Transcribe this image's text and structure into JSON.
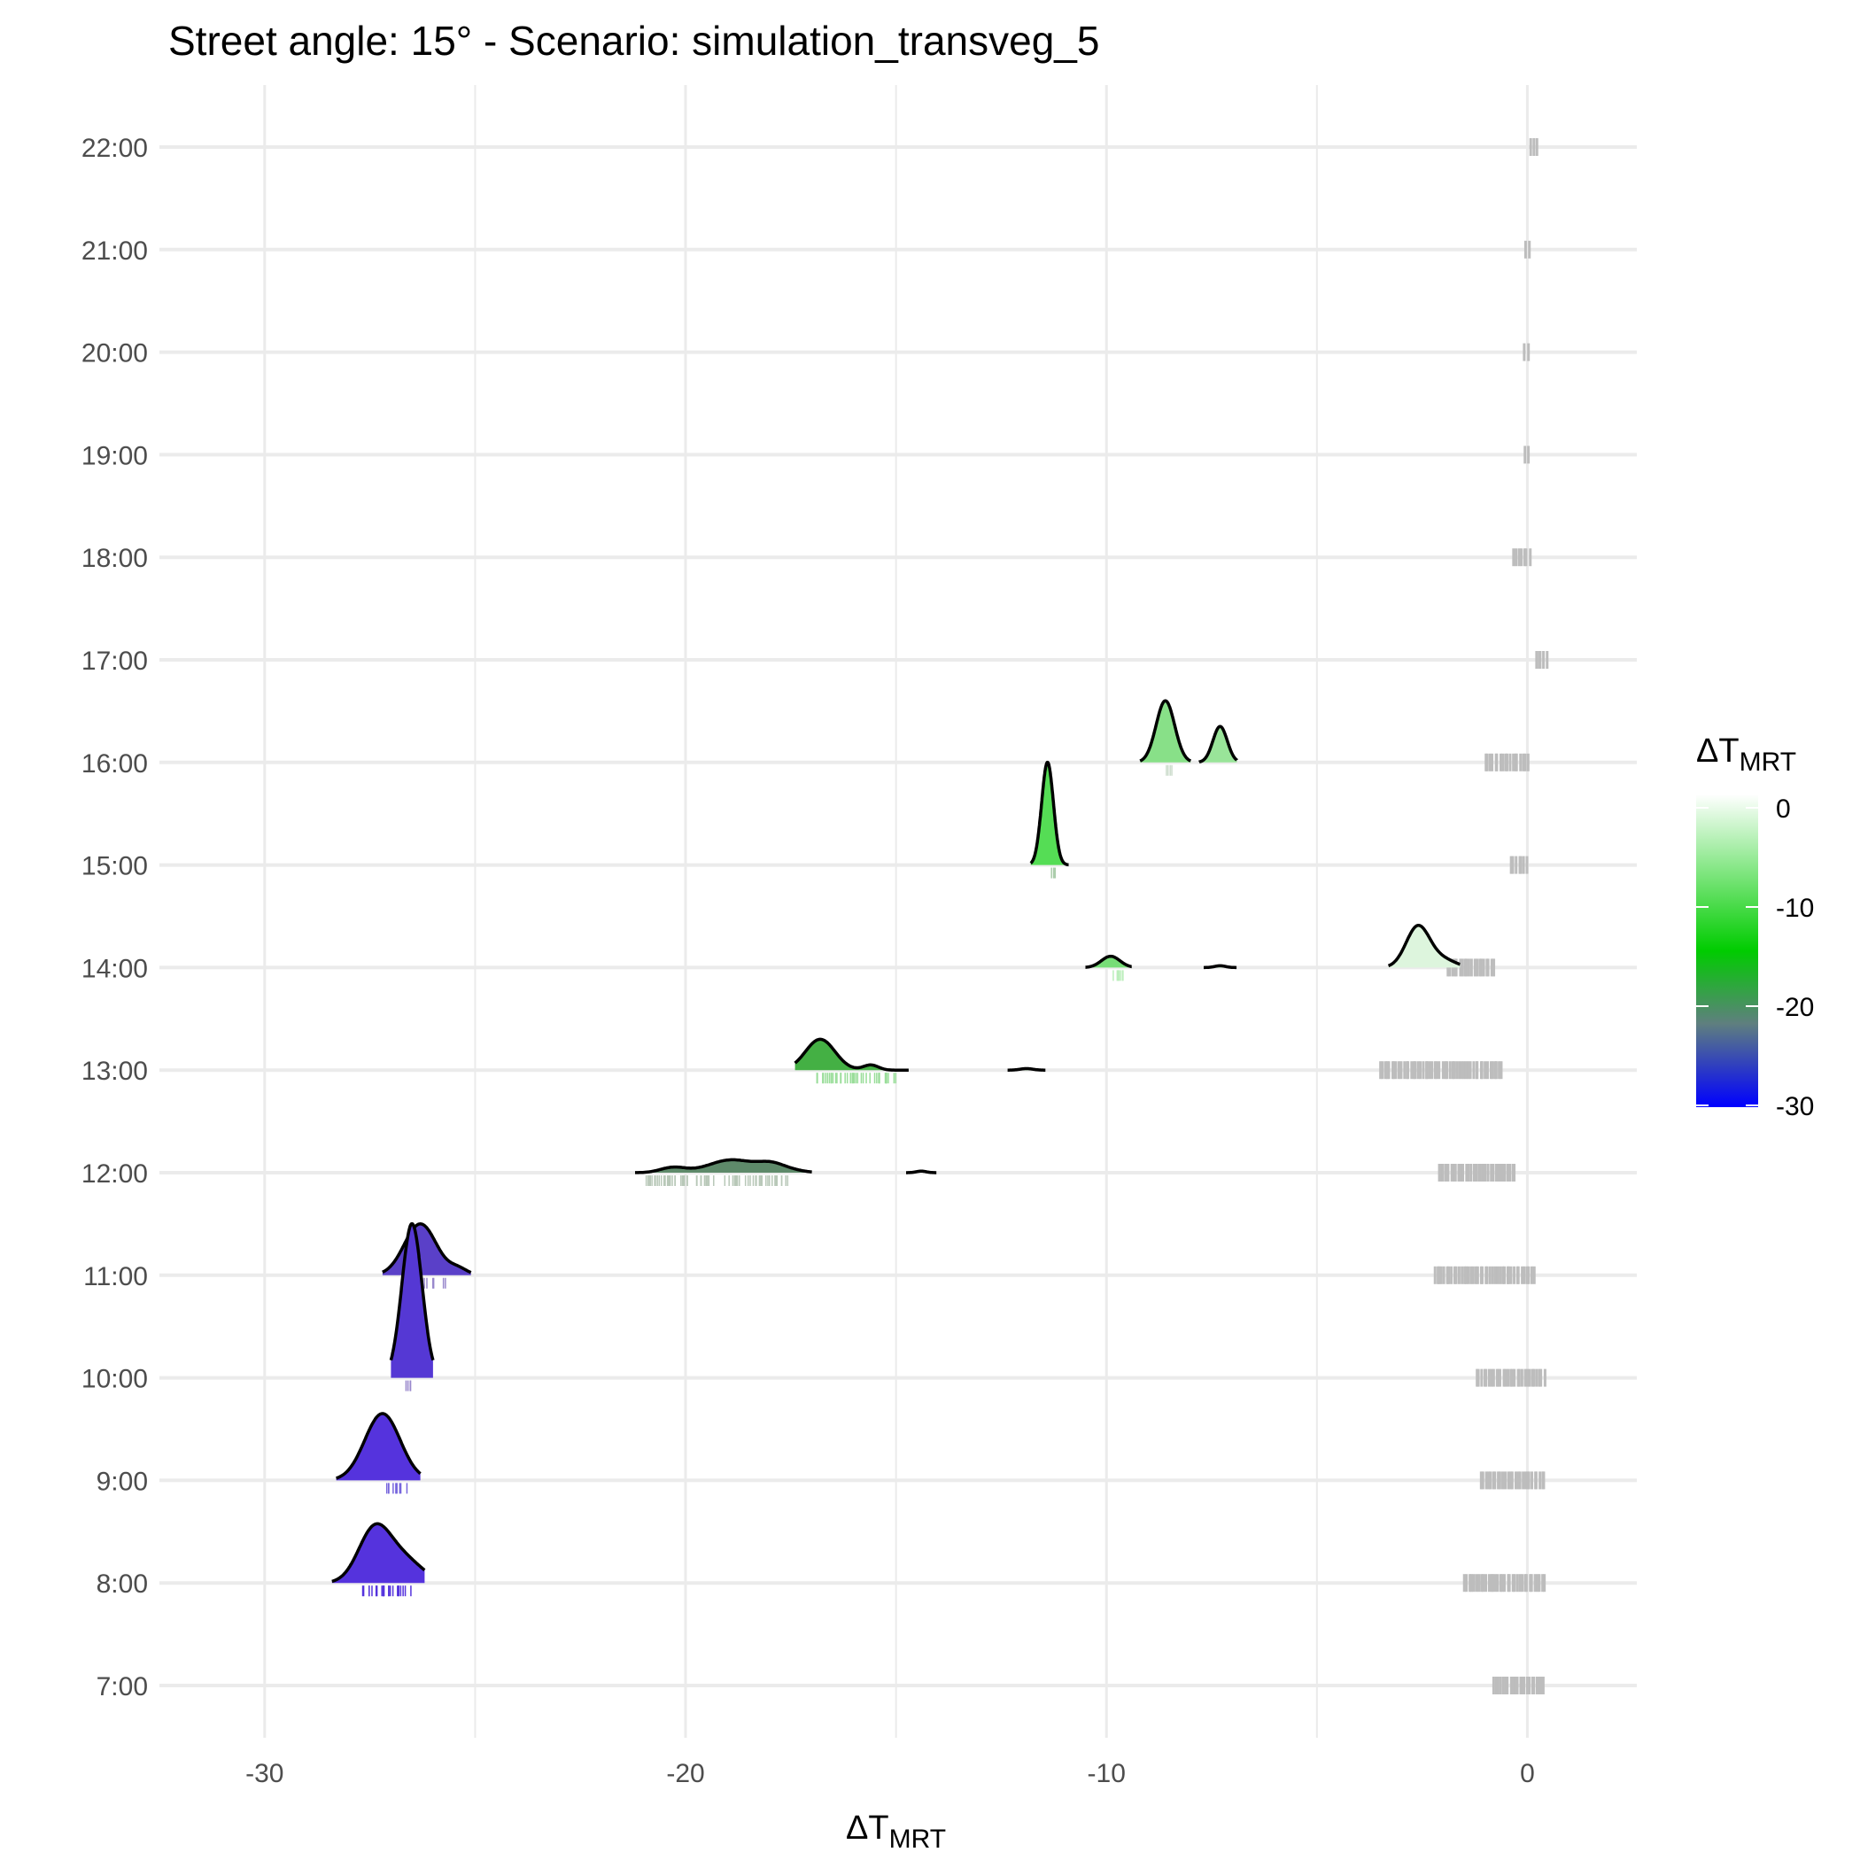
{
  "chart_data": {
    "type": "ridgeline",
    "title": "Street angle: 15° - Scenario: simulation_transveg_5",
    "xlabel": "ΔT",
    "xlabel_sub": "MRT",
    "ylabel": "",
    "xlim": [
      -32.5,
      2.6
    ],
    "x_ticks": [
      -30,
      -20,
      -10,
      0
    ],
    "x_minor_ticks": [
      -25,
      -15,
      -5
    ],
    "categories": [
      "7:00",
      "8:00",
      "9:00",
      "10:00",
      "11:00",
      "12:00",
      "13:00",
      "14:00",
      "15:00",
      "16:00",
      "17:00",
      "18:00",
      "19:00",
      "20:00",
      "21:00",
      "22:00"
    ],
    "grid": true,
    "legend": {
      "title": "ΔT",
      "title_sub": "MRT",
      "position": "right",
      "type": "colorbar",
      "range": [
        -30,
        0
      ],
      "ticks": [
        0,
        -10,
        -20,
        -30
      ],
      "colors": [
        {
          "value": 0,
          "color": "#ffffff"
        },
        {
          "value": -15,
          "color": "#00cc00"
        },
        {
          "value": -22,
          "color": "#5f7f7f"
        },
        {
          "value": -30,
          "color": "#0000ff"
        }
      ]
    },
    "ridges": [
      {
        "category": "8:00",
        "peaks": [
          {
            "center": -27.4,
            "sd": 0.38,
            "height": 1.0,
            "fill": "#5533dd"
          },
          {
            "center": -26.7,
            "sd": 0.45,
            "height": 0.45,
            "fill": "#5533dd"
          }
        ],
        "range": [
          -28.4,
          -26.2
        ]
      },
      {
        "category": "9:00",
        "peaks": [
          {
            "center": -27.2,
            "sd": 0.42,
            "height": 1.3,
            "fill": "#5533dd"
          }
        ],
        "range": [
          -28.3,
          -26.3
        ]
      },
      {
        "category": "10:00",
        "peaks": [
          {
            "center": -26.5,
            "sd": 0.24,
            "height": 3.0,
            "fill": "#5538d4"
          }
        ],
        "range": [
          -27.0,
          -26.0
        ]
      },
      {
        "category": "11:00",
        "peaks": [
          {
            "center": -26.3,
            "sd": 0.38,
            "height": 1.0,
            "fill": "#5a40c8"
          },
          {
            "center": -25.4,
            "sd": 0.22,
            "height": 0.12,
            "fill": "#5a40c8"
          }
        ],
        "range": [
          -27.2,
          -25.1
        ]
      },
      {
        "category": "12:00",
        "peaks": [
          {
            "center": -20.3,
            "sd": 0.3,
            "height": 0.1,
            "fill": "#5e8a6a"
          },
          {
            "center": -18.9,
            "sd": 0.55,
            "height": 0.25,
            "fill": "#5e8a6a"
          },
          {
            "center": -18.0,
            "sd": 0.3,
            "height": 0.12,
            "fill": "#5e8a6a"
          },
          {
            "center": -17.6,
            "sd": 0.35,
            "height": 0.06,
            "fill": "#5e8a6a"
          }
        ],
        "range": [
          -21.2,
          -17.0
        ],
        "minor": {
          "center": -14.4,
          "sd": 0.12,
          "height": 0.03,
          "fill": "#55aa55"
        }
      },
      {
        "category": "13:00",
        "peaks": [
          {
            "center": -16.8,
            "sd": 0.35,
            "height": 0.6,
            "fill": "#44b044"
          },
          {
            "center": -15.6,
            "sd": 0.18,
            "height": 0.1,
            "fill": "#44b044"
          }
        ],
        "range": [
          -17.4,
          -14.7
        ],
        "minor": {
          "center": -11.9,
          "sd": 0.15,
          "height": 0.03,
          "fill": "#44b044"
        }
      },
      {
        "category": "14:00",
        "peaks": [
          {
            "center": -9.9,
            "sd": 0.22,
            "height": 0.22,
            "fill": "#77dd77"
          }
        ],
        "range": [
          -10.5,
          -9.4
        ],
        "minor": {
          "center": -7.3,
          "sd": 0.13,
          "height": 0.035,
          "fill": "#88dd88"
        },
        "second": {
          "center": -2.6,
          "sd": 0.28,
          "height": 0.8,
          "fill": "#ddf5dd",
          "range": [
            -3.3,
            -1.6
          ],
          "shoulder": {
            "center": -2.0,
            "sd": 0.3,
            "height": 0.15
          }
        }
      },
      {
        "category": "15:00",
        "peaks": [
          {
            "center": -11.4,
            "sd": 0.14,
            "height": 2.0,
            "fill": "#55dd55"
          }
        ],
        "range": [
          -11.8,
          -10.9
        ]
      },
      {
        "category": "16:00",
        "peaks": [
          {
            "center": -8.6,
            "sd": 0.22,
            "height": 1.2,
            "fill": "#88e088"
          }
        ],
        "range": [
          -9.2,
          -8.0
        ],
        "minor": {
          "center": -7.3,
          "sd": 0.17,
          "height": 0.7,
          "fill": "#99e499",
          "range": [
            -7.8,
            -6.9
          ]
        }
      }
    ],
    "rugs": [
      {
        "category": "8:00",
        "color": "#5533dd",
        "range": [
          -27.7,
          -26.5
        ]
      },
      {
        "category": "9:00",
        "color": "#7766dd",
        "range": [
          -27.1,
          -26.6
        ]
      },
      {
        "category": "10:00",
        "color": "#9988cc",
        "range": [
          -26.7,
          -26.5
        ]
      },
      {
        "category": "11:00",
        "color": "#9988cc",
        "range": [
          -26.4,
          -25.7
        ]
      },
      {
        "category": "12:00",
        "color": "#b8c8b8",
        "range": [
          -21.0,
          -17.5
        ]
      },
      {
        "category": "13:00",
        "color": "#99dd99",
        "range": [
          -17.0,
          -15.0
        ]
      },
      {
        "category": "14:00",
        "color": "#bbeebb",
        "range": [
          -10.0,
          -9.6
        ]
      },
      {
        "category": "15:00",
        "color": "#aaccaa",
        "range": [
          -11.4,
          -11.2
        ]
      },
      {
        "category": "16:00",
        "color": "#ccdccc",
        "range": [
          -8.6,
          -8.4
        ]
      }
    ],
    "gray_marks": [
      {
        "category": "7:00",
        "range": [
          -0.8,
          0.4
        ]
      },
      {
        "category": "8:00",
        "range": [
          -1.5,
          0.4
        ]
      },
      {
        "category": "9:00",
        "range": [
          -1.1,
          0.4
        ]
      },
      {
        "category": "10:00",
        "range": [
          -1.2,
          0.4
        ]
      },
      {
        "category": "11:00",
        "range": [
          -2.2,
          0.15
        ]
      },
      {
        "category": "12:00",
        "range": [
          -2.1,
          -0.3
        ]
      },
      {
        "category": "13:00",
        "range": [
          -3.5,
          -0.6
        ]
      },
      {
        "category": "14:00",
        "range": [
          -1.9,
          -0.8
        ]
      },
      {
        "category": "15:00",
        "range": [
          -0.4,
          0.0
        ]
      },
      {
        "category": "16:00",
        "range": [
          -1.0,
          0.0
        ]
      },
      {
        "category": "17:00",
        "range": [
          0.2,
          0.45
        ]
      },
      {
        "category": "18:00",
        "range": [
          -0.35,
          0.05
        ]
      },
      {
        "category": "19:00",
        "range": [
          -0.08,
          0.02
        ]
      },
      {
        "category": "20:00",
        "range": [
          -0.05,
          0.03
        ]
      },
      {
        "category": "21:00",
        "range": [
          -0.02,
          0.06
        ]
      },
      {
        "category": "22:00",
        "range": [
          0.1,
          0.25
        ]
      }
    ]
  }
}
